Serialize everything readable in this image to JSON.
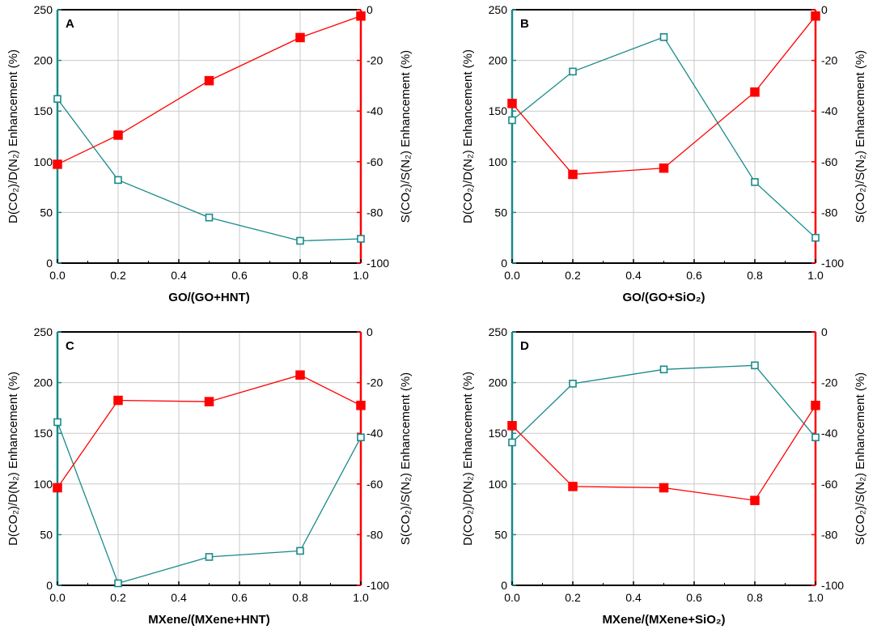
{
  "colors": {
    "left_series": "#1a8a8a",
    "right_series": "#ff0000",
    "grid": "#c8c8c8",
    "frame": "#000000"
  },
  "chart_data": [
    {
      "type": "line",
      "panel": "A",
      "xlabel": "GO/(GO+HNT)",
      "ylabel_left": "D(CO₂)/D(N₂) Enhancement (%)",
      "ylabel_right": "S(CO₂)/S(N₂) Enhancement (%)",
      "x": [
        0.0,
        0.2,
        0.5,
        0.8,
        1.0
      ],
      "xlim": [
        0.0,
        1.0
      ],
      "xticks": [
        "0.0",
        "0.2",
        "0.4",
        "0.6",
        "0.8",
        "1.0"
      ],
      "ylim_left": [
        0,
        250
      ],
      "yticks_left": [
        "0",
        "50",
        "100",
        "150",
        "200",
        "250"
      ],
      "ylim_right": [
        -100,
        0
      ],
      "yticks_right": [
        "-100",
        "-80",
        "-60",
        "-40",
        "-20",
        "0"
      ],
      "series": [
        {
          "name": "D(CO₂)/D(N₂) Enhancement",
          "axis": "left",
          "marker": "open-square",
          "values": [
            162,
            82,
            45,
            22,
            24
          ]
        },
        {
          "name": "S(CO₂)/S(N₂) Enhancement",
          "axis": "right",
          "marker": "filled-square",
          "values": [
            -61,
            -49.5,
            -28,
            -11,
            -2.5
          ]
        }
      ]
    },
    {
      "type": "line",
      "panel": "B",
      "xlabel": "GO/(GO+SiO₂)",
      "ylabel_left": "D(CO₂)/D(N₂) Enhancement (%)",
      "ylabel_right": "S(CO₂)/S(N₂) Enhancement (%)",
      "x": [
        0.0,
        0.2,
        0.5,
        0.8,
        1.0
      ],
      "xlim": [
        0.0,
        1.0
      ],
      "xticks": [
        "0.0",
        "0.2",
        "0.4",
        "0.6",
        "0.8",
        "1.0"
      ],
      "ylim_left": [
        0,
        250
      ],
      "yticks_left": [
        "0",
        "50",
        "100",
        "150",
        "200",
        "250"
      ],
      "ylim_right": [
        -100,
        0
      ],
      "yticks_right": [
        "-100",
        "-80",
        "-60",
        "-40",
        "-20",
        "0"
      ],
      "series": [
        {
          "name": "D(CO₂)/D(N₂) Enhancement",
          "axis": "left",
          "marker": "open-square",
          "values": [
            141,
            189,
            223,
            80,
            25
          ]
        },
        {
          "name": "S(CO₂)/S(N₂) Enhancement",
          "axis": "right",
          "marker": "filled-square",
          "values": [
            -37,
            -65,
            -62.5,
            -32.5,
            -2.5
          ]
        }
      ]
    },
    {
      "type": "line",
      "panel": "C",
      "xlabel": "MXene/(MXene+HNT)",
      "ylabel_left": "D(CO₂)/D(N₂) Enhancement (%)",
      "ylabel_right": "S(CO₂)/S(N₂) Enhancement (%)",
      "x": [
        0.0,
        0.2,
        0.5,
        0.8,
        1.0
      ],
      "xlim": [
        0.0,
        1.0
      ],
      "xticks": [
        "0.0",
        "0.2",
        "0.4",
        "0.6",
        "0.8",
        "1.0"
      ],
      "ylim_left": [
        0,
        250
      ],
      "yticks_left": [
        "0",
        "50",
        "100",
        "150",
        "200",
        "250"
      ],
      "ylim_right": [
        -100,
        0
      ],
      "yticks_right": [
        "-100",
        "-80",
        "-60",
        "-40",
        "-20",
        "0"
      ],
      "series": [
        {
          "name": "D(CO₂)/D(N₂) Enhancement",
          "axis": "left",
          "marker": "open-square",
          "values": [
            161,
            2,
            28,
            34,
            146
          ]
        },
        {
          "name": "S(CO₂)/S(N₂) Enhancement",
          "axis": "right",
          "marker": "filled-square",
          "values": [
            -61.5,
            -27,
            -27.5,
            -17,
            -29
          ]
        }
      ]
    },
    {
      "type": "line",
      "panel": "D",
      "xlabel": "MXene/(MXene+SiO₂)",
      "ylabel_left": "D(CO₂)/D(N₂) Enhancement (%)",
      "ylabel_right": "S(CO₂)/S(N₂) Enhancement (%)",
      "x": [
        0.0,
        0.2,
        0.5,
        0.8,
        1.0
      ],
      "xlim": [
        0.0,
        1.0
      ],
      "xticks": [
        "0.0",
        "0.2",
        "0.4",
        "0.6",
        "0.8",
        "1.0"
      ],
      "ylim_left": [
        0,
        250
      ],
      "yticks_left": [
        "0",
        "50",
        "100",
        "150",
        "200",
        "250"
      ],
      "ylim_right": [
        -100,
        0
      ],
      "yticks_right": [
        "-100",
        "-80",
        "-60",
        "-40",
        "-20",
        "0"
      ],
      "series": [
        {
          "name": "D(CO₂)/D(N₂) Enhancement",
          "axis": "left",
          "marker": "open-square",
          "values": [
            141,
            199,
            213,
            217,
            146
          ]
        },
        {
          "name": "S(CO₂)/S(N₂) Enhancement",
          "axis": "right",
          "marker": "filled-square",
          "values": [
            -37,
            -61,
            -61.5,
            -66.5,
            -29
          ]
        }
      ]
    }
  ]
}
